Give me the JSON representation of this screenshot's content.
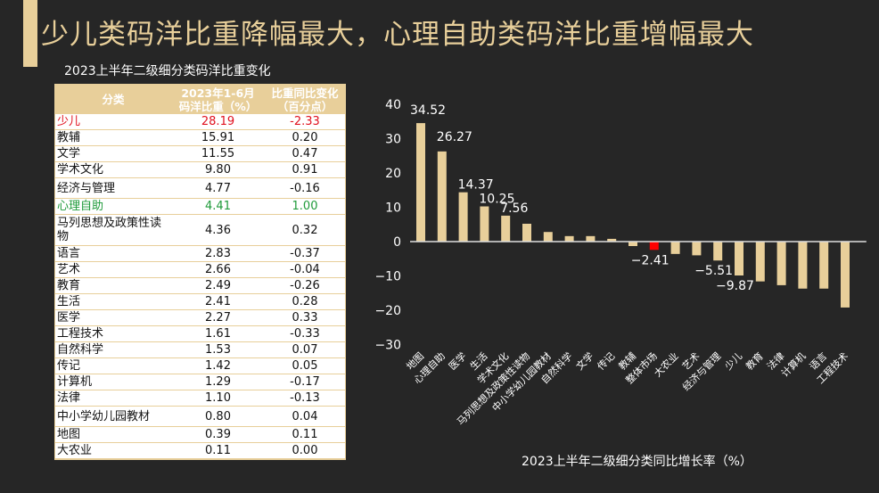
{
  "header": {
    "title": "少儿类码洋比重降幅最大，心理自助类码洋比重增幅最大"
  },
  "table": {
    "title": "2023上半年二级细分类码洋比重变化",
    "columns": [
      "分类",
      "2023年1-6月\n码洋比重（%）",
      "比重同比变化\n（百分点）"
    ],
    "col1_line1": "2023年1-6月",
    "col1_line2": "码洋比重（%）",
    "col2_line1": "比重同比变化",
    "col2_line2": "（百分点）",
    "rows": [
      {
        "category": "少儿",
        "share": "28.19",
        "change": "-2.33",
        "highlight": "red"
      },
      {
        "category": "教辅",
        "share": "15.91",
        "change": "0.20"
      },
      {
        "category": "文学",
        "share": "11.55",
        "change": "0.47"
      },
      {
        "category": "学术文化",
        "share": "9.80",
        "change": "0.91"
      },
      {
        "category": "经济与管理",
        "share": "4.77",
        "change": "-0.16"
      },
      {
        "category": "心理自助",
        "share": "4.41",
        "change": "1.00",
        "highlight": "green"
      },
      {
        "category": "马列思想及政策性读物",
        "share": "4.36",
        "change": "0.32"
      },
      {
        "category": "语言",
        "share": "2.83",
        "change": "-0.37"
      },
      {
        "category": "艺术",
        "share": "2.66",
        "change": "-0.04"
      },
      {
        "category": "教育",
        "share": "2.49",
        "change": "-0.26"
      },
      {
        "category": "生活",
        "share": "2.41",
        "change": "0.28"
      },
      {
        "category": "医学",
        "share": "2.27",
        "change": "0.33"
      },
      {
        "category": "工程技术",
        "share": "1.61",
        "change": "-0.33"
      },
      {
        "category": "自然科学",
        "share": "1.53",
        "change": "0.07"
      },
      {
        "category": "传记",
        "share": "1.42",
        "change": "0.05"
      },
      {
        "category": "计算机",
        "share": "1.29",
        "change": "-0.17"
      },
      {
        "category": "法律",
        "share": "1.10",
        "change": "-0.13"
      },
      {
        "category": "中小学幼儿园教材",
        "share": "0.80",
        "change": "0.04"
      },
      {
        "category": "地图",
        "share": "0.39",
        "change": "0.11"
      },
      {
        "category": "大农业",
        "share": "0.11",
        "change": "0.00"
      }
    ]
  },
  "chart_data": {
    "type": "bar",
    "title": "2023上半年二级细分类同比增长率（%）",
    "xlabel": "",
    "ylabel": "",
    "ylim": [
      -30,
      40
    ],
    "yticks": [
      40,
      30,
      20,
      10,
      0,
      -10,
      -20,
      -30
    ],
    "grid": false,
    "bar_color": "#e8cf9a",
    "highlight_color": "#ff0000",
    "categories": [
      "地图",
      "心理自助",
      "医学",
      "生活",
      "学术文化",
      "马列思想及政策性读物",
      "中小学幼儿园教材",
      "自然科学",
      "文学",
      "传记",
      "教辅",
      "整体市场",
      "大农业",
      "艺术",
      "经济与管理",
      "少儿",
      "教育",
      "法律",
      "计算机",
      "语言",
      "工程技术"
    ],
    "values": [
      34.52,
      26.27,
      14.37,
      10.25,
      7.56,
      5.2,
      2.8,
      1.6,
      1.6,
      0.8,
      -1.3,
      -2.41,
      -3.6,
      -4.0,
      -5.51,
      -9.87,
      -11.6,
      -12.7,
      -13.7,
      -13.7,
      -19.2
    ],
    "labels": [
      "34.52",
      "26.27",
      "14.37",
      "10.25",
      "7.56",
      "",
      "",
      "",
      "",
      "",
      "",
      "-2.41",
      "",
      "",
      "-5.51",
      "-9.87",
      "",
      "",
      "",
      "",
      ""
    ],
    "highlight_index": 11
  }
}
